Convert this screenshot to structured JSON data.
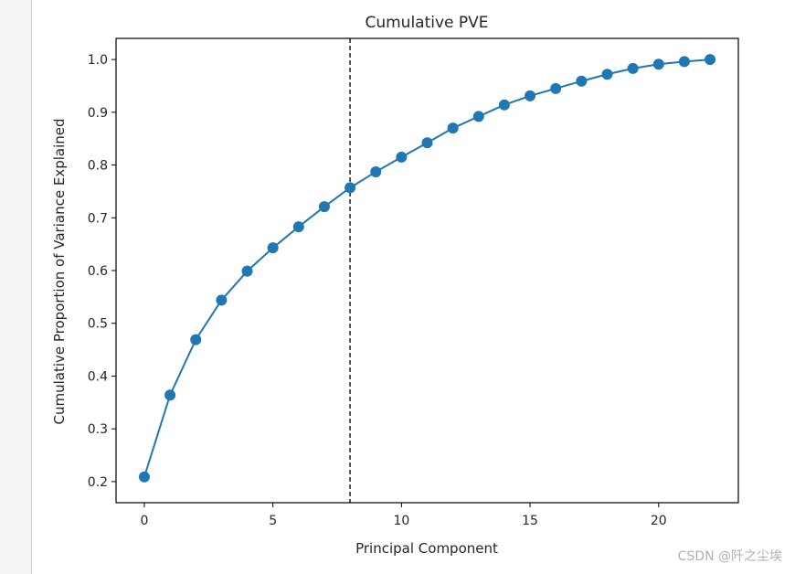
{
  "chart_data": {
    "type": "line",
    "title": "Cumulative PVE",
    "xlabel": "Principal Component",
    "ylabel": "Cumulative Proportion of Variance Explained",
    "x": [
      0,
      1,
      2,
      3,
      4,
      5,
      6,
      7,
      8,
      9,
      10,
      11,
      12,
      13,
      14,
      15,
      16,
      17,
      18,
      19,
      20,
      21,
      22
    ],
    "series": [
      {
        "values": [
          0.209,
          0.364,
          0.469,
          0.544,
          0.599,
          0.643,
          0.683,
          0.721,
          0.757,
          0.787,
          0.815,
          0.842,
          0.87,
          0.892,
          0.914,
          0.931,
          0.945,
          0.959,
          0.972,
          0.983,
          0.991,
          0.996,
          1.0
        ],
        "color": "#1f77b4",
        "marker": "circle"
      }
    ],
    "vline": {
      "x": 8,
      "style": "dashed",
      "color": "#000000"
    },
    "xlim": [
      -1.1,
      23.1
    ],
    "ylim": [
      0.16,
      1.04
    ],
    "xticks": [
      "0",
      "5",
      "10",
      "15",
      "20"
    ],
    "yticks": [
      "0.2",
      "0.3",
      "0.4",
      "0.5",
      "0.6",
      "0.7",
      "0.8",
      "0.9",
      "1.0"
    ],
    "grid": false
  },
  "watermark": "CSDN @阡之尘埃"
}
